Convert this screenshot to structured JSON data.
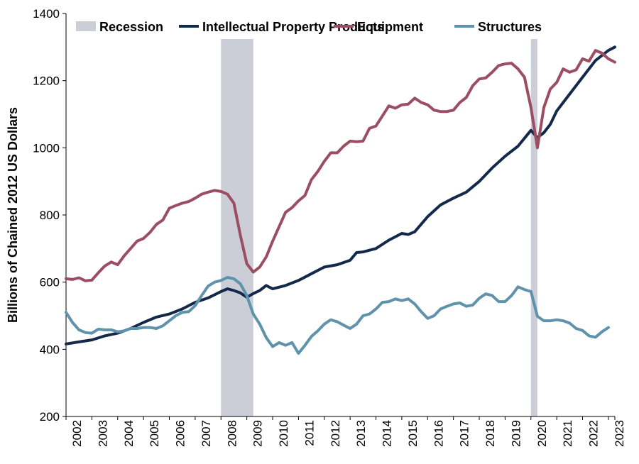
{
  "chart_data": {
    "type": "line",
    "title": "",
    "xlabel": "",
    "ylabel": "Billions of Chained 2012 US Dollars",
    "ylim": [
      200,
      1400
    ],
    "yticks": [
      200,
      400,
      600,
      800,
      1000,
      1200,
      1400
    ],
    "xlim": [
      2002.0,
      2023.25
    ],
    "xticks": [
      "2002",
      "2003",
      "2004",
      "2005",
      "2006",
      "2007",
      "2008",
      "2009",
      "2010",
      "2011",
      "2012",
      "2013",
      "2014",
      "2015",
      "2016",
      "2017",
      "2018",
      "2019",
      "2020",
      "2021",
      "2022",
      "2023"
    ],
    "grid": false,
    "legend_position": "top",
    "recession": {
      "name": "Recession",
      "color": "#cbcdd7",
      "periods": [
        [
          2008.0,
          2009.25
        ],
        [
          2020.0,
          2020.25
        ]
      ]
    },
    "series": [
      {
        "name": "Intellectual Property Products",
        "color": "#13294b",
        "points": [
          [
            2002.0,
            416
          ],
          [
            2002.5,
            422
          ],
          [
            2003.0,
            428
          ],
          [
            2003.5,
            440
          ],
          [
            2004.0,
            448
          ],
          [
            2004.5,
            462
          ],
          [
            2005.0,
            480
          ],
          [
            2005.5,
            496
          ],
          [
            2006.0,
            505
          ],
          [
            2006.5,
            520
          ],
          [
            2007.0,
            540
          ],
          [
            2007.5,
            553
          ],
          [
            2008.0,
            572
          ],
          [
            2008.25,
            580
          ],
          [
            2008.5,
            575
          ],
          [
            2008.75,
            568
          ],
          [
            2009.0,
            555
          ],
          [
            2009.25,
            566
          ],
          [
            2009.5,
            575
          ],
          [
            2009.75,
            590
          ],
          [
            2010.0,
            580
          ],
          [
            2010.5,
            590
          ],
          [
            2011.0,
            605
          ],
          [
            2011.5,
            625
          ],
          [
            2012.0,
            645
          ],
          [
            2012.5,
            652
          ],
          [
            2013.0,
            665
          ],
          [
            2013.25,
            688
          ],
          [
            2013.5,
            690
          ],
          [
            2014.0,
            700
          ],
          [
            2014.5,
            725
          ],
          [
            2015.0,
            745
          ],
          [
            2015.25,
            742
          ],
          [
            2015.5,
            750
          ],
          [
            2016.0,
            795
          ],
          [
            2016.5,
            830
          ],
          [
            2017.0,
            850
          ],
          [
            2017.5,
            868
          ],
          [
            2018.0,
            900
          ],
          [
            2018.5,
            940
          ],
          [
            2019.0,
            975
          ],
          [
            2019.5,
            1005
          ],
          [
            2020.0,
            1052
          ],
          [
            2020.25,
            1030
          ],
          [
            2020.5,
            1045
          ],
          [
            2020.75,
            1070
          ],
          [
            2021.0,
            1110
          ],
          [
            2021.5,
            1160
          ],
          [
            2022.0,
            1210
          ],
          [
            2022.5,
            1260
          ],
          [
            2023.0,
            1290
          ],
          [
            2023.25,
            1300
          ]
        ]
      },
      {
        "name": "Equipment",
        "color": "#9b4d62",
        "points": [
          [
            2002.0,
            610
          ],
          [
            2002.25,
            608
          ],
          [
            2002.5,
            613
          ],
          [
            2002.75,
            604
          ],
          [
            2003.0,
            606
          ],
          [
            2003.25,
            628
          ],
          [
            2003.5,
            648
          ],
          [
            2003.75,
            660
          ],
          [
            2004.0,
            652
          ],
          [
            2004.25,
            678
          ],
          [
            2004.5,
            700
          ],
          [
            2004.75,
            722
          ],
          [
            2005.0,
            730
          ],
          [
            2005.25,
            748
          ],
          [
            2005.5,
            772
          ],
          [
            2005.75,
            785
          ],
          [
            2006.0,
            820
          ],
          [
            2006.25,
            828
          ],
          [
            2006.5,
            835
          ],
          [
            2006.75,
            840
          ],
          [
            2007.0,
            850
          ],
          [
            2007.25,
            862
          ],
          [
            2007.5,
            868
          ],
          [
            2007.75,
            873
          ],
          [
            2008.0,
            870
          ],
          [
            2008.25,
            862
          ],
          [
            2008.5,
            835
          ],
          [
            2008.75,
            740
          ],
          [
            2009.0,
            655
          ],
          [
            2009.25,
            630
          ],
          [
            2009.5,
            645
          ],
          [
            2009.75,
            675
          ],
          [
            2010.0,
            722
          ],
          [
            2010.25,
            765
          ],
          [
            2010.5,
            808
          ],
          [
            2010.75,
            822
          ],
          [
            2011.0,
            842
          ],
          [
            2011.25,
            858
          ],
          [
            2011.5,
            905
          ],
          [
            2011.75,
            930
          ],
          [
            2012.0,
            960
          ],
          [
            2012.25,
            985
          ],
          [
            2012.5,
            985
          ],
          [
            2012.75,
            1005
          ],
          [
            2013.0,
            1020
          ],
          [
            2013.25,
            1018
          ],
          [
            2013.5,
            1020
          ],
          [
            2013.75,
            1058
          ],
          [
            2014.0,
            1065
          ],
          [
            2014.25,
            1095
          ],
          [
            2014.5,
            1125
          ],
          [
            2014.75,
            1118
          ],
          [
            2015.0,
            1128
          ],
          [
            2015.25,
            1130
          ],
          [
            2015.5,
            1148
          ],
          [
            2015.75,
            1135
          ],
          [
            2016.0,
            1128
          ],
          [
            2016.25,
            1112
          ],
          [
            2016.5,
            1108
          ],
          [
            2016.75,
            1108
          ],
          [
            2017.0,
            1112
          ],
          [
            2017.25,
            1135
          ],
          [
            2017.5,
            1150
          ],
          [
            2017.75,
            1185
          ],
          [
            2018.0,
            1205
          ],
          [
            2018.25,
            1208
          ],
          [
            2018.5,
            1225
          ],
          [
            2018.75,
            1245
          ],
          [
            2019.0,
            1250
          ],
          [
            2019.25,
            1252
          ],
          [
            2019.5,
            1235
          ],
          [
            2019.75,
            1210
          ],
          [
            2020.0,
            1120
          ],
          [
            2020.25,
            1000
          ],
          [
            2020.5,
            1120
          ],
          [
            2020.75,
            1175
          ],
          [
            2021.0,
            1195
          ],
          [
            2021.25,
            1235
          ],
          [
            2021.5,
            1225
          ],
          [
            2021.75,
            1232
          ],
          [
            2022.0,
            1265
          ],
          [
            2022.25,
            1258
          ],
          [
            2022.5,
            1290
          ],
          [
            2022.75,
            1282
          ],
          [
            2023.0,
            1265
          ],
          [
            2023.25,
            1255
          ]
        ]
      },
      {
        "name": "Structures",
        "color": "#5e93ab",
        "points": [
          [
            2002.0,
            510
          ],
          [
            2002.25,
            480
          ],
          [
            2002.5,
            458
          ],
          [
            2002.75,
            450
          ],
          [
            2003.0,
            448
          ],
          [
            2003.25,
            460
          ],
          [
            2003.5,
            458
          ],
          [
            2003.75,
            458
          ],
          [
            2004.0,
            452
          ],
          [
            2004.25,
            455
          ],
          [
            2004.5,
            462
          ],
          [
            2004.75,
            462
          ],
          [
            2005.0,
            465
          ],
          [
            2005.25,
            465
          ],
          [
            2005.5,
            462
          ],
          [
            2005.75,
            470
          ],
          [
            2006.0,
            485
          ],
          [
            2006.25,
            500
          ],
          [
            2006.5,
            510
          ],
          [
            2006.75,
            512
          ],
          [
            2007.0,
            530
          ],
          [
            2007.25,
            560
          ],
          [
            2007.5,
            588
          ],
          [
            2007.75,
            600
          ],
          [
            2008.0,
            605
          ],
          [
            2008.25,
            614
          ],
          [
            2008.5,
            610
          ],
          [
            2008.75,
            595
          ],
          [
            2009.0,
            560
          ],
          [
            2009.25,
            505
          ],
          [
            2009.5,
            475
          ],
          [
            2009.75,
            435
          ],
          [
            2010.0,
            408
          ],
          [
            2010.25,
            420
          ],
          [
            2010.5,
            412
          ],
          [
            2010.75,
            420
          ],
          [
            2011.0,
            388
          ],
          [
            2011.25,
            412
          ],
          [
            2011.5,
            438
          ],
          [
            2011.75,
            455
          ],
          [
            2012.0,
            475
          ],
          [
            2012.25,
            488
          ],
          [
            2012.5,
            482
          ],
          [
            2012.75,
            472
          ],
          [
            2013.0,
            462
          ],
          [
            2013.25,
            475
          ],
          [
            2013.5,
            500
          ],
          [
            2013.75,
            505
          ],
          [
            2014.0,
            520
          ],
          [
            2014.25,
            540
          ],
          [
            2014.5,
            542
          ],
          [
            2014.75,
            550
          ],
          [
            2015.0,
            545
          ],
          [
            2015.25,
            550
          ],
          [
            2015.5,
            535
          ],
          [
            2015.75,
            512
          ],
          [
            2016.0,
            492
          ],
          [
            2016.25,
            500
          ],
          [
            2016.5,
            520
          ],
          [
            2016.75,
            528
          ],
          [
            2017.0,
            535
          ],
          [
            2017.25,
            538
          ],
          [
            2017.5,
            528
          ],
          [
            2017.75,
            532
          ],
          [
            2018.0,
            552
          ],
          [
            2018.25,
            565
          ],
          [
            2018.5,
            560
          ],
          [
            2018.75,
            542
          ],
          [
            2019.0,
            542
          ],
          [
            2019.25,
            560
          ],
          [
            2019.5,
            586
          ],
          [
            2019.75,
            578
          ],
          [
            2020.0,
            572
          ],
          [
            2020.25,
            498
          ],
          [
            2020.5,
            485
          ],
          [
            2020.75,
            485
          ],
          [
            2021.0,
            488
          ],
          [
            2021.25,
            485
          ],
          [
            2021.5,
            478
          ],
          [
            2021.75,
            462
          ],
          [
            2022.0,
            456
          ],
          [
            2022.25,
            440
          ],
          [
            2022.5,
            436
          ],
          [
            2022.75,
            452
          ],
          [
            2023.0,
            465
          ]
        ]
      }
    ]
  }
}
